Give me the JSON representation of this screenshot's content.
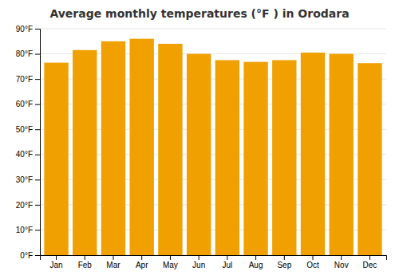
{
  "chart_data": {
    "type": "bar",
    "title": "Average monthly temperatures (°F ) in Orodara",
    "categories": [
      "Jan",
      "Feb",
      "Mar",
      "Apr",
      "May",
      "Jun",
      "Jul",
      "Aug",
      "Sep",
      "Oct",
      "Nov",
      "Dec"
    ],
    "values": [
      76.5,
      81.5,
      85.0,
      86.0,
      84.0,
      80.0,
      77.5,
      76.8,
      77.5,
      80.5,
      80.0,
      76.3
    ],
    "color": "#F0A000",
    "ylim": [
      0,
      90
    ],
    "yticks": [
      {
        "value": 0,
        "label": "0°F"
      },
      {
        "value": 10,
        "label": "10°F"
      },
      {
        "value": 20,
        "label": "20°F"
      },
      {
        "value": 30,
        "label": "30°F"
      },
      {
        "value": 40,
        "label": "40°F"
      },
      {
        "value": 50,
        "label": "50°F"
      },
      {
        "value": 60,
        "label": "60°F"
      },
      {
        "value": 70,
        "label": "70°F"
      },
      {
        "value": 80,
        "label": "80°F"
      },
      {
        "value": 90,
        "label": "90°F"
      }
    ],
    "grid": true
  }
}
